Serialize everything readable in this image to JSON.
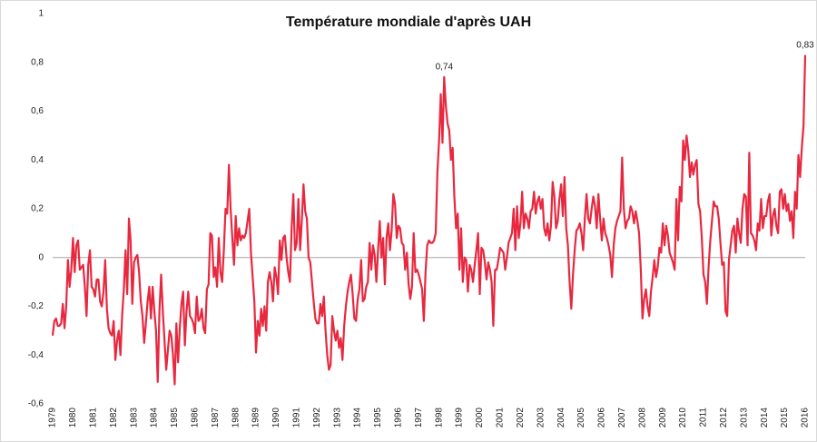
{
  "chart_data": {
    "type": "line",
    "title": "Température mondiale d'après UAH",
    "ylim": [
      -0.6,
      1
    ],
    "yticks": [
      {
        "value": -0.6,
        "label": "-0,6"
      },
      {
        "value": -0.4,
        "label": "-0,4"
      },
      {
        "value": -0.2,
        "label": "-0,2"
      },
      0,
      {
        "value": 0.2,
        "label": "0,2"
      },
      {
        "value": 0.4,
        "label": "0,4"
      },
      {
        "value": 0.6,
        "label": "0,6"
      },
      {
        "value": 0.8,
        "label": "0,8"
      },
      1
    ],
    "grid": false,
    "categories": [
      "1979",
      null,
      null,
      null,
      null,
      null,
      null,
      null,
      null,
      null,
      null,
      null,
      "1980",
      null,
      null,
      null,
      null,
      null,
      null,
      null,
      null,
      null,
      null,
      null,
      "1981",
      null,
      null,
      null,
      null,
      null,
      null,
      null,
      null,
      null,
      null,
      null,
      "1982",
      null,
      null,
      null,
      null,
      null,
      null,
      null,
      null,
      null,
      null,
      null,
      "1983",
      null,
      null,
      null,
      null,
      null,
      null,
      null,
      null,
      null,
      null,
      null,
      "1984",
      null,
      null,
      null,
      null,
      null,
      null,
      null,
      null,
      null,
      null,
      null,
      "1985",
      null,
      null,
      null,
      null,
      null,
      null,
      null,
      null,
      null,
      null,
      null,
      "1986",
      null,
      null,
      null,
      null,
      null,
      null,
      null,
      null,
      null,
      null,
      null,
      "1987",
      null,
      null,
      null,
      null,
      null,
      null,
      null,
      null,
      null,
      null,
      null,
      "1988",
      null,
      null,
      null,
      null,
      null,
      null,
      null,
      null,
      null,
      null,
      null,
      "1989",
      null,
      null,
      null,
      null,
      null,
      null,
      null,
      null,
      null,
      null,
      null,
      "1990",
      null,
      null,
      null,
      null,
      null,
      null,
      null,
      null,
      null,
      null,
      null,
      "1991",
      null,
      null,
      null,
      null,
      null,
      null,
      null,
      null,
      null,
      null,
      null,
      "1992",
      null,
      null,
      null,
      null,
      null,
      null,
      null,
      null,
      null,
      null,
      null,
      "1993",
      null,
      null,
      null,
      null,
      null,
      null,
      null,
      null,
      null,
      null,
      null,
      "1994",
      null,
      null,
      null,
      null,
      null,
      null,
      null,
      null,
      null,
      null,
      null,
      "1995",
      null,
      null,
      null,
      null,
      null,
      null,
      null,
      null,
      null,
      null,
      null,
      "1996",
      null,
      null,
      null,
      null,
      null,
      null,
      null,
      null,
      null,
      null,
      null,
      "1997",
      null,
      null,
      null,
      null,
      null,
      null,
      null,
      null,
      null,
      null,
      null,
      "1998",
      null,
      null,
      null,
      null,
      null,
      null,
      null,
      null,
      null,
      null,
      null,
      "1999",
      null,
      null,
      null,
      null,
      null,
      null,
      null,
      null,
      null,
      null,
      null,
      "2000",
      null,
      null,
      null,
      null,
      null,
      null,
      null,
      null,
      null,
      null,
      null,
      "2001",
      null,
      null,
      null,
      null,
      null,
      null,
      null,
      null,
      null,
      null,
      null,
      "2002",
      null,
      null,
      null,
      null,
      null,
      null,
      null,
      null,
      null,
      null,
      null,
      "2003",
      null,
      null,
      null,
      null,
      null,
      null,
      null,
      null,
      null,
      null,
      null,
      "2004",
      null,
      null,
      null,
      null,
      null,
      null,
      null,
      null,
      null,
      null,
      null,
      "2005",
      null,
      null,
      null,
      null,
      null,
      null,
      null,
      null,
      null,
      null,
      null,
      "2006",
      null,
      null,
      null,
      null,
      null,
      null,
      null,
      null,
      null,
      null,
      null,
      "2007",
      null,
      null,
      null,
      null,
      null,
      null,
      null,
      null,
      null,
      null,
      null,
      "2008",
      null,
      null,
      null,
      null,
      null,
      null,
      null,
      null,
      null,
      null,
      null,
      "2009",
      null,
      null,
      null,
      null,
      null,
      null,
      null,
      null,
      null,
      null,
      null,
      "2010",
      null,
      null,
      null,
      null,
      null,
      null,
      null,
      null,
      null,
      null,
      null,
      "2011",
      null,
      null,
      null,
      null,
      null,
      null,
      null,
      null,
      null,
      null,
      null,
      "2012",
      null,
      null,
      null,
      null,
      null,
      null,
      null,
      null,
      null,
      null,
      null,
      "2013",
      null,
      null,
      null,
      null,
      null,
      null,
      null,
      null,
      null,
      null,
      null,
      "2014",
      null,
      null,
      null,
      null,
      null,
      null,
      null,
      null,
      null,
      null,
      null,
      "2015",
      null,
      null,
      null,
      null,
      null,
      null,
      null,
      null,
      null,
      null,
      null,
      "2016"
    ],
    "color": "#e8283f",
    "values": [
      -0.32,
      -0.26,
      -0.25,
      -0.28,
      -0.28,
      -0.27,
      -0.19,
      -0.29,
      -0.2,
      -0.01,
      -0.12,
      -0.05,
      0.08,
      -0.06,
      0.05,
      0.07,
      -0.05,
      -0.04,
      -0.03,
      -0.12,
      -0.24,
      -0.03,
      0.03,
      -0.12,
      -0.13,
      -0.16,
      -0.09,
      -0.09,
      -0.18,
      -0.2,
      -0.14,
      -0.01,
      -0.21,
      -0.29,
      -0.31,
      -0.32,
      -0.26,
      -0.42,
      -0.34,
      -0.3,
      -0.4,
      -0.24,
      -0.13,
      0.03,
      -0.15,
      0.16,
      0.07,
      -0.19,
      -0.02,
      0.0,
      0.01,
      -0.06,
      -0.18,
      -0.24,
      -0.35,
      -0.27,
      -0.18,
      -0.12,
      -0.25,
      -0.12,
      -0.22,
      -0.3,
      -0.51,
      -0.22,
      -0.07,
      -0.22,
      -0.34,
      -0.46,
      -0.38,
      -0.3,
      -0.32,
      -0.4,
      -0.52,
      -0.27,
      -0.43,
      -0.29,
      -0.19,
      -0.14,
      -0.36,
      -0.22,
      -0.14,
      -0.24,
      -0.25,
      -0.27,
      -0.31,
      -0.16,
      -0.26,
      -0.25,
      -0.21,
      -0.29,
      -0.31,
      -0.13,
      -0.11,
      0.1,
      0.09,
      -0.08,
      -0.04,
      -0.12,
      0.08,
      -0.06,
      -0.1,
      0.03,
      0.2,
      0.18,
      0.38,
      0.2,
      0.08,
      -0.03,
      0.17,
      0.05,
      0.12,
      0.07,
      0.09,
      0.08,
      0.1,
      0.15,
      0.2,
      0.02,
      -0.08,
      -0.18,
      -0.39,
      -0.26,
      -0.32,
      -0.21,
      -0.28,
      -0.2,
      -0.3,
      -0.1,
      -0.06,
      -0.1,
      -0.18,
      -0.04,
      -0.08,
      -0.15,
      0.07,
      -0.01,
      0.08,
      0.09,
      0.0,
      -0.06,
      -0.1,
      0.12,
      0.26,
      0.03,
      0.06,
      0.24,
      0.03,
      0.15,
      0.3,
      0.19,
      0.16,
      0.0,
      -0.02,
      -0.1,
      -0.18,
      -0.25,
      -0.27,
      -0.27,
      -0.19,
      -0.24,
      -0.16,
      -0.3,
      -0.4,
      -0.46,
      -0.44,
      -0.24,
      -0.3,
      -0.34,
      -0.3,
      -0.37,
      -0.33,
      -0.42,
      -0.28,
      -0.2,
      -0.14,
      -0.1,
      -0.07,
      -0.15,
      -0.25,
      -0.26,
      -0.17,
      -0.13,
      -0.01,
      -0.18,
      -0.17,
      -0.12,
      -0.1,
      0.06,
      -0.05,
      0.05,
      0.01,
      -0.1,
      0.03,
      0.15,
      0.0,
      0.08,
      -0.11,
      0.08,
      0.14,
      0.03,
      0.11,
      0.26,
      0.22,
      0.08,
      0.13,
      0.12,
      0.06,
      0.05,
      -0.05,
      0.02,
      -0.11,
      -0.17,
      -0.12,
      0.1,
      -0.06,
      -0.05,
      -0.07,
      -0.1,
      -0.13,
      -0.26,
      -0.06,
      0.05,
      0.07,
      0.06,
      0.06,
      0.07,
      0.1,
      0.35,
      0.48,
      0.67,
      0.47,
      0.74,
      0.62,
      0.55,
      0.52,
      0.4,
      0.45,
      0.25,
      0.12,
      0.18,
      -0.05,
      0.12,
      -0.1,
      0.0,
      -0.01,
      -0.14,
      -0.03,
      -0.05,
      -0.1,
      -0.03,
      0.03,
      0.1,
      -0.15,
      0.04,
      0.03,
      -0.02,
      -0.09,
      -0.02,
      -0.05,
      -0.1,
      -0.28,
      -0.05,
      -0.05,
      -0.01,
      0.04,
      0.03,
      0.02,
      -0.05,
      0.0,
      0.06,
      0.08,
      0.1,
      0.2,
      0.03,
      0.21,
      0.08,
      0.14,
      0.27,
      0.12,
      0.18,
      0.16,
      0.12,
      0.19,
      0.2,
      0.27,
      0.18,
      0.23,
      0.25,
      0.2,
      0.24,
      0.12,
      0.09,
      0.14,
      0.07,
      0.13,
      0.31,
      0.25,
      0.12,
      0.15,
      0.24,
      0.3,
      0.17,
      0.33,
      0.12,
      0.05,
      -0.1,
      -0.21,
      -0.07,
      0.03,
      0.11,
      0.12,
      0.14,
      0.1,
      0.03,
      0.16,
      0.26,
      0.16,
      0.14,
      0.2,
      0.25,
      0.21,
      0.12,
      0.26,
      0.16,
      0.07,
      0.16,
      0.1,
      0.08,
      0.05,
      0.01,
      -0.08,
      0.05,
      0.12,
      0.15,
      0.17,
      0.19,
      0.41,
      0.2,
      0.12,
      0.15,
      0.16,
      0.21,
      0.19,
      0.14,
      0.19,
      0.15,
      0.1,
      -0.05,
      -0.25,
      -0.17,
      -0.13,
      -0.2,
      -0.24,
      -0.14,
      -0.08,
      -0.01,
      -0.08,
      -0.04,
      0.04,
      0.02,
      0.14,
      0.05,
      0.13,
      0.09,
      0.02,
      0.0,
      -0.02,
      -0.05,
      0.24,
      0.07,
      0.29,
      0.23,
      0.48,
      0.4,
      0.5,
      0.44,
      0.33,
      0.39,
      0.34,
      0.38,
      0.4,
      0.22,
      0.19,
      0.08,
      -0.07,
      -0.1,
      -0.19,
      -0.04,
      0.07,
      0.15,
      0.23,
      0.21,
      0.21,
      0.16,
      0.06,
      -0.03,
      -0.02,
      -0.22,
      -0.24,
      -0.01,
      0.05,
      0.11,
      0.13,
      0.02,
      0.16,
      0.1,
      0.06,
      0.2,
      0.26,
      0.25,
      0.05,
      0.43,
      0.1,
      0.09,
      0.07,
      0.03,
      0.14,
      0.11,
      0.24,
      0.12,
      0.17,
      0.17,
      0.23,
      0.26,
      0.09,
      0.17,
      0.2,
      0.13,
      0.1,
      0.27,
      0.28,
      0.2,
      0.26,
      0.19,
      0.22,
      0.15,
      0.19,
      0.08,
      0.27,
      0.2,
      0.42,
      0.33,
      0.45,
      0.54,
      0.83
    ],
    "value_labels": [
      null,
      null,
      null,
      null,
      null,
      null,
      null,
      null,
      null,
      null,
      null,
      null,
      null,
      null,
      null,
      null,
      null,
      null,
      null,
      null,
      null,
      null,
      null,
      null,
      null,
      null,
      null,
      null,
      null,
      null,
      null,
      null,
      null,
      null,
      null,
      null,
      null,
      null,
      null,
      null,
      null,
      null,
      null,
      null,
      null,
      null,
      null,
      null,
      null,
      null,
      null,
      null,
      null,
      null,
      null,
      null,
      null,
      null,
      null,
      null,
      null,
      null,
      null,
      null,
      null,
      null,
      null,
      null,
      null,
      null,
      null,
      null,
      null,
      null,
      null,
      null,
      null,
      null,
      null,
      null,
      null,
      null,
      null,
      null,
      null,
      null,
      null,
      null,
      null,
      null,
      null,
      null,
      null,
      null,
      null,
      null,
      null,
      null,
      null,
      null,
      null,
      null,
      null,
      null,
      null,
      null,
      null,
      null,
      null,
      null,
      null,
      null,
      null,
      null,
      null,
      null,
      null,
      null,
      null,
      null,
      null,
      null,
      null,
      null,
      null,
      null,
      null,
      null,
      null,
      null,
      null,
      null,
      null,
      null,
      null,
      null,
      null,
      null,
      null,
      null,
      null,
      null,
      null,
      null,
      null,
      null,
      null,
      null,
      null,
      null,
      null,
      null,
      null,
      null,
      null,
      null,
      null,
      null,
      null,
      null,
      null,
      null,
      null,
      null,
      null,
      null,
      null,
      null,
      null,
      null,
      null,
      null,
      null,
      null,
      null,
      null,
      null,
      null,
      null,
      null,
      null,
      null,
      null,
      null,
      null,
      null,
      null,
      null,
      null,
      null,
      null,
      null,
      null,
      null,
      null,
      null,
      null,
      null,
      null,
      null,
      null,
      null,
      null,
      null,
      null,
      null,
      null,
      null,
      null,
      null,
      null,
      null,
      null,
      null,
      null,
      null,
      null,
      null,
      null,
      null,
      null,
      null,
      null,
      null,
      null,
      null,
      null,
      null,
      null,
      null,
      null,
      "0,74",
      null,
      null,
      null,
      null,
      null,
      null,
      null,
      null,
      null,
      null,
      null,
      null,
      null,
      null,
      null,
      null,
      null,
      null,
      null,
      null,
      null,
      null,
      null,
      null,
      null,
      null,
      null,
      null,
      null,
      null,
      null,
      null,
      null,
      null,
      null,
      null,
      null,
      null,
      null,
      null,
      null,
      null,
      null,
      null,
      null,
      null,
      null,
      null,
      null,
      null,
      null,
      null,
      null,
      null,
      null,
      null,
      null,
      null,
      null,
      null,
      null,
      null,
      null,
      null,
      null,
      null,
      null,
      null,
      null,
      null,
      null,
      null,
      null,
      null,
      null,
      null,
      null,
      null,
      null,
      null,
      null,
      null,
      null,
      null,
      null,
      null,
      null,
      null,
      null,
      null,
      null,
      null,
      null,
      null,
      null,
      null,
      null,
      null,
      null,
      null,
      null,
      null,
      null,
      null,
      null,
      null,
      null,
      null,
      null,
      null,
      null,
      null,
      null,
      null,
      null,
      null,
      null,
      null,
      null,
      null,
      null,
      null,
      null,
      null,
      null,
      null,
      null,
      null,
      null,
      null,
      null,
      null,
      null,
      null,
      null,
      null,
      null,
      null,
      null,
      null,
      null,
      null,
      null,
      null,
      null,
      null,
      null,
      null,
      null,
      null,
      null,
      null,
      null,
      null,
      null,
      null,
      null,
      null,
      null,
      null,
      null,
      null,
      null,
      null,
      null,
      null,
      null,
      null,
      null,
      null,
      null,
      null,
      null,
      null,
      null,
      null,
      null,
      null,
      null,
      null,
      null,
      null,
      null,
      null,
      null,
      null,
      null,
      null,
      null,
      null,
      null,
      null,
      null,
      null,
      null,
      null,
      null,
      null,
      null,
      null,
      null,
      null,
      null,
      null,
      null,
      null,
      null,
      null,
      null,
      null,
      null,
      null,
      "0,83"
    ]
  }
}
